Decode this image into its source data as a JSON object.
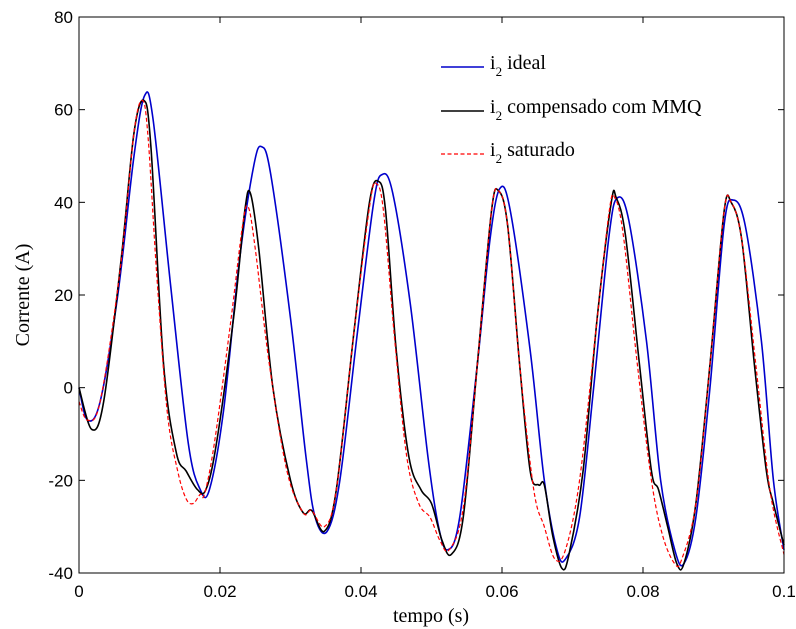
{
  "chart_data": {
    "type": "line",
    "title": "",
    "xlabel": "tempo (s)",
    "ylabel": "Corrente (A)",
    "xlim": [
      0,
      0.1
    ],
    "ylim": [
      -40,
      80
    ],
    "xticks": [
      0,
      0.02,
      0.04,
      0.06,
      0.08,
      0.1
    ],
    "xtick_labels": [
      "0",
      "0.02",
      "0.04",
      "0.06",
      "0.08",
      "0.1"
    ],
    "yticks": [
      -40,
      -20,
      0,
      20,
      40,
      60,
      80
    ],
    "ytick_labels": [
      "-40",
      "-20",
      "0",
      "20",
      "40",
      "60",
      "80"
    ],
    "grid": false,
    "legend_position": "top-right",
    "series": [
      {
        "name_main": "i",
        "name_sub": "2",
        "name_rest": " ideal",
        "color": "#0000cc",
        "dash": "solid",
        "points": [
          [
            0,
            0
          ],
          [
            0.0012,
            -7
          ],
          [
            0.003,
            -3
          ],
          [
            0.0055,
            20
          ],
          [
            0.0078,
            50
          ],
          [
            0.0093,
            63
          ],
          [
            0.0105,
            58
          ],
          [
            0.013,
            22
          ],
          [
            0.0155,
            -12
          ],
          [
            0.0172,
            -22
          ],
          [
            0.0185,
            -22
          ],
          [
            0.0205,
            -5
          ],
          [
            0.0228,
            28
          ],
          [
            0.0248,
            48
          ],
          [
            0.0259,
            52
          ],
          [
            0.0272,
            46
          ],
          [
            0.03,
            15
          ],
          [
            0.0322,
            -15
          ],
          [
            0.0335,
            -28
          ],
          [
            0.0352,
            -31
          ],
          [
            0.037,
            -20
          ],
          [
            0.0395,
            12
          ],
          [
            0.0418,
            40
          ],
          [
            0.043,
            46
          ],
          [
            0.0445,
            42
          ],
          [
            0.047,
            18
          ],
          [
            0.0495,
            -15
          ],
          [
            0.051,
            -30
          ],
          [
            0.0523,
            -35
          ],
          [
            0.054,
            -28
          ],
          [
            0.0565,
            5
          ],
          [
            0.0583,
            32
          ],
          [
            0.0597,
            43
          ],
          [
            0.0612,
            38
          ],
          [
            0.064,
            8
          ],
          [
            0.066,
            -20
          ],
          [
            0.0678,
            -35
          ],
          [
            0.069,
            -37
          ],
          [
            0.071,
            -28
          ],
          [
            0.073,
            0
          ],
          [
            0.0752,
            33
          ],
          [
            0.0764,
            41
          ],
          [
            0.078,
            36
          ],
          [
            0.0805,
            10
          ],
          [
            0.0825,
            -20
          ],
          [
            0.0845,
            -35
          ],
          [
            0.0858,
            -38
          ],
          [
            0.0875,
            -28
          ],
          [
            0.0895,
            0
          ],
          [
            0.0915,
            35
          ],
          [
            0.0928,
            40.5
          ],
          [
            0.0945,
            35
          ],
          [
            0.0968,
            10
          ],
          [
            0.0985,
            -20
          ],
          [
            0.1,
            -35
          ]
        ]
      },
      {
        "name_main": "i",
        "name_sub": "2",
        "name_rest": " compensado com MMQ",
        "color": "#000000",
        "dash": "solid",
        "points": [
          [
            0,
            0
          ],
          [
            0.0018,
            -9
          ],
          [
            0.0035,
            -3
          ],
          [
            0.006,
            28
          ],
          [
            0.0078,
            55
          ],
          [
            0.0092,
            62
          ],
          [
            0.0102,
            52
          ],
          [
            0.012,
            5
          ],
          [
            0.0138,
            -14
          ],
          [
            0.0152,
            -18
          ],
          [
            0.0168,
            -22
          ],
          [
            0.018,
            -22
          ],
          [
            0.0195,
            -12
          ],
          [
            0.022,
            16
          ],
          [
            0.0235,
            38
          ],
          [
            0.0243,
            42
          ],
          [
            0.0255,
            30
          ],
          [
            0.0275,
            0
          ],
          [
            0.03,
            -20
          ],
          [
            0.0318,
            -27
          ],
          [
            0.033,
            -26.5
          ],
          [
            0.0348,
            -31
          ],
          [
            0.0365,
            -22
          ],
          [
            0.039,
            12
          ],
          [
            0.0412,
            40
          ],
          [
            0.0425,
            44.5
          ],
          [
            0.0435,
            38
          ],
          [
            0.045,
            8
          ],
          [
            0.0468,
            -15
          ],
          [
            0.0485,
            -22
          ],
          [
            0.05,
            -25
          ],
          [
            0.0515,
            -33
          ],
          [
            0.0528,
            -36
          ],
          [
            0.0545,
            -28
          ],
          [
            0.0565,
            5
          ],
          [
            0.0585,
            38
          ],
          [
            0.0595,
            42.5
          ],
          [
            0.0608,
            35
          ],
          [
            0.0625,
            5
          ],
          [
            0.064,
            -18
          ],
          [
            0.0652,
            -21
          ],
          [
            0.066,
            -21
          ],
          [
            0.0672,
            -32
          ],
          [
            0.0685,
            -39
          ],
          [
            0.0695,
            -36
          ],
          [
            0.0715,
            -18
          ],
          [
            0.0735,
            15
          ],
          [
            0.0755,
            40
          ],
          [
            0.0762,
            41
          ],
          [
            0.0775,
            33
          ],
          [
            0.0795,
            5
          ],
          [
            0.0812,
            -18
          ],
          [
            0.0822,
            -22
          ],
          [
            0.0835,
            -30
          ],
          [
            0.0848,
            -38
          ],
          [
            0.0858,
            -38
          ],
          [
            0.0875,
            -25
          ],
          [
            0.0895,
            5
          ],
          [
            0.0915,
            38
          ],
          [
            0.0925,
            40
          ],
          [
            0.094,
            32
          ],
          [
            0.0958,
            5
          ],
          [
            0.0975,
            -18
          ],
          [
            0.0985,
            -25
          ],
          [
            0.1,
            -34
          ]
        ]
      },
      {
        "name_main": "i",
        "name_sub": "2",
        "name_rest": " saturado",
        "color": "#ff0000",
        "dash": "dashed",
        "points": [
          [
            0,
            -3
          ],
          [
            0.0012,
            -7
          ],
          [
            0.003,
            -3
          ],
          [
            0.0058,
            25
          ],
          [
            0.0078,
            55
          ],
          [
            0.009,
            62
          ],
          [
            0.0098,
            54
          ],
          [
            0.011,
            25
          ],
          [
            0.0125,
            -5
          ],
          [
            0.014,
            -18
          ],
          [
            0.0152,
            -24
          ],
          [
            0.0162,
            -25
          ],
          [
            0.0172,
            -23
          ],
          [
            0.0178,
            -23
          ],
          [
            0.0192,
            -12
          ],
          [
            0.0215,
            14
          ],
          [
            0.0232,
            35
          ],
          [
            0.024,
            39
          ],
          [
            0.025,
            30
          ],
          [
            0.027,
            5
          ],
          [
            0.0295,
            -18
          ],
          [
            0.0318,
            -27
          ],
          [
            0.033,
            -26.5
          ],
          [
            0.0348,
            -30
          ],
          [
            0.0365,
            -22
          ],
          [
            0.039,
            12
          ],
          [
            0.0413,
            40
          ],
          [
            0.0422,
            44
          ],
          [
            0.0432,
            38
          ],
          [
            0.0448,
            10
          ],
          [
            0.0465,
            -15
          ],
          [
            0.0482,
            -25
          ],
          [
            0.0498,
            -28
          ],
          [
            0.0512,
            -33
          ],
          [
            0.0525,
            -35
          ],
          [
            0.0545,
            -26
          ],
          [
            0.0565,
            5
          ],
          [
            0.0585,
            38
          ],
          [
            0.0595,
            42.5
          ],
          [
            0.0608,
            35
          ],
          [
            0.0625,
            5
          ],
          [
            0.0645,
            -22
          ],
          [
            0.066,
            -30
          ],
          [
            0.0675,
            -37
          ],
          [
            0.069,
            -35
          ],
          [
            0.071,
            -20
          ],
          [
            0.0733,
            12
          ],
          [
            0.0752,
            38
          ],
          [
            0.076,
            41
          ],
          [
            0.0772,
            33
          ],
          [
            0.0792,
            5
          ],
          [
            0.0812,
            -20
          ],
          [
            0.0828,
            -32
          ],
          [
            0.0845,
            -38
          ],
          [
            0.0855,
            -37
          ],
          [
            0.0875,
            -25
          ],
          [
            0.0895,
            5
          ],
          [
            0.0915,
            38
          ],
          [
            0.0925,
            40
          ],
          [
            0.094,
            32
          ],
          [
            0.096,
            5
          ],
          [
            0.098,
            -22
          ],
          [
            0.1,
            -36
          ]
        ]
      }
    ]
  }
}
